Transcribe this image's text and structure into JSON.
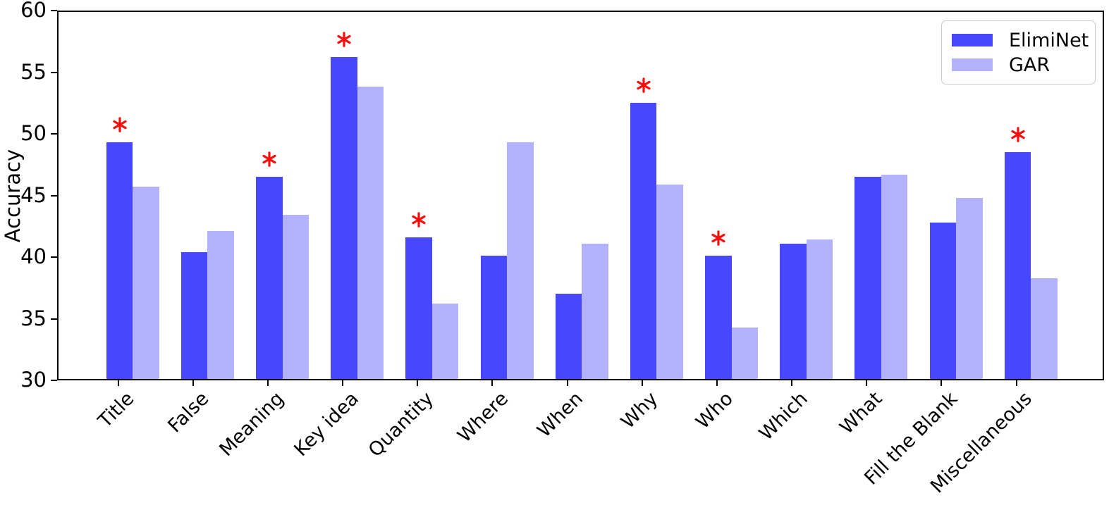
{
  "chart_data": {
    "type": "bar",
    "title": "",
    "xlabel": "",
    "ylabel": "Accuracy",
    "ylim": [
      30,
      60
    ],
    "yticks": [
      30,
      35,
      40,
      45,
      50,
      55,
      60
    ],
    "grid": false,
    "categories": [
      "Title",
      "False",
      "Meaning",
      "Key idea",
      "Quantity",
      "Where",
      "When",
      "Why",
      "Who",
      "Which",
      "What",
      "Fill the Blank",
      "Miscellaneous"
    ],
    "series": [
      {
        "name": "ElimiNet",
        "color": "#4747fe",
        "values": [
          49.2,
          40.3,
          46.4,
          56.1,
          41.5,
          40.0,
          36.9,
          52.4,
          40.0,
          41.0,
          46.4,
          42.7,
          48.4
        ]
      },
      {
        "name": "GAR",
        "color": "#b2b2fe",
        "values": [
          45.6,
          42.0,
          43.3,
          53.7,
          36.1,
          49.2,
          41.0,
          45.8,
          34.2,
          41.3,
          46.6,
          44.7,
          38.2
        ]
      }
    ],
    "significance": {
      "marker": "*",
      "color": "#f80d0d",
      "marked_categories": [
        "Title",
        "Meaning",
        "Key idea",
        "Quantity",
        "Why",
        "Who",
        "Miscellaneous"
      ],
      "meaning": "red asterisk above ElimiNet bar"
    },
    "legend": {
      "position": "top-right",
      "entries": [
        "ElimiNet",
        "GAR"
      ]
    },
    "axis_color": "#000000"
  }
}
